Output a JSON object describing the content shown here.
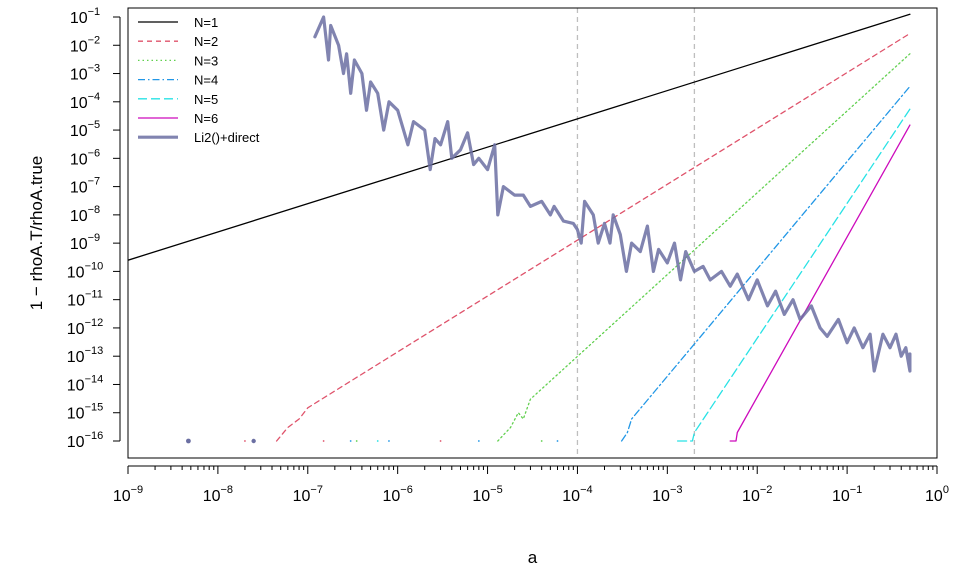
{
  "chart_data": {
    "type": "line",
    "xlabel": "a",
    "ylabel": "1 − rhoA.T/rhoA.true",
    "x_scale": "log",
    "y_scale": "log",
    "xlim": [
      1e-09,
      1
    ],
    "ylim": [
      1e-16,
      0.1
    ],
    "x_ticks": [
      {
        "base": "10",
        "exp": "−9",
        "value": 1e-09
      },
      {
        "base": "10",
        "exp": "−8",
        "value": 1e-08
      },
      {
        "base": "10",
        "exp": "−7",
        "value": 1e-07
      },
      {
        "base": "10",
        "exp": "−6",
        "value": 1e-06
      },
      {
        "base": "10",
        "exp": "−5",
        "value": 1e-05
      },
      {
        "base": "10",
        "exp": "−4",
        "value": 0.0001
      },
      {
        "base": "10",
        "exp": "−3",
        "value": 0.001
      },
      {
        "base": "10",
        "exp": "−2",
        "value": 0.01
      },
      {
        "base": "10",
        "exp": "−1",
        "value": 0.1
      },
      {
        "base": "10",
        "exp": "0",
        "value": 1
      }
    ],
    "y_ticks": [
      {
        "base": "10",
        "exp": "−16",
        "value": 1e-16
      },
      {
        "base": "10",
        "exp": "−15",
        "value": 1e-15
      },
      {
        "base": "10",
        "exp": "−14",
        "value": 1e-14
      },
      {
        "base": "10",
        "exp": "−13",
        "value": 1e-13
      },
      {
        "base": "10",
        "exp": "−12",
        "value": 1e-12
      },
      {
        "base": "10",
        "exp": "−11",
        "value": 1e-11
      },
      {
        "base": "10",
        "exp": "−10",
        "value": 1e-10
      },
      {
        "base": "10",
        "exp": "−9",
        "value": 1e-09
      },
      {
        "base": "10",
        "exp": "−8",
        "value": 1e-08
      },
      {
        "base": "10",
        "exp": "−7",
        "value": 1e-07
      },
      {
        "base": "10",
        "exp": "−6",
        "value": 1e-06
      },
      {
        "base": "10",
        "exp": "−5",
        "value": 1e-05
      },
      {
        "base": "10",
        "exp": "−4",
        "value": 0.0001
      },
      {
        "base": "10",
        "exp": "−3",
        "value": 0.001
      },
      {
        "base": "10",
        "exp": "−2",
        "value": 0.01
      },
      {
        "base": "10",
        "exp": "−1",
        "value": 0.1
      }
    ],
    "vlines": [
      {
        "x": 0.0001,
        "color": "#bebebe",
        "style": "dashed"
      },
      {
        "x": 0.002,
        "color": "#bebebe",
        "style": "dashed"
      }
    ],
    "legend_position": "top-left",
    "grid": false,
    "series": [
      {
        "name": "N=1",
        "color": "#000000",
        "dash": "",
        "width": 1.3,
        "opacity": 1,
        "points": [
          [
            1e-09,
            2.5e-10
          ],
          [
            0.5,
            0.125
          ]
        ]
      },
      {
        "name": "N=2",
        "color": "#DF536B",
        "dash": "5,4",
        "width": 1.3,
        "opacity": 1,
        "points": [
          [
            4.5e-08,
            1e-16
          ],
          [
            6e-08,
            3e-16
          ],
          [
            8e-08,
            6e-16
          ],
          [
            1e-07,
            1.5e-15
          ],
          [
            0.5,
            0.026
          ]
        ]
      },
      {
        "name": "N=3",
        "color": "#61D04F",
        "dash": "1.5,3",
        "width": 1.3,
        "opacity": 1,
        "points": [
          [
            1.3e-05,
            1e-16
          ],
          [
            1.8e-05,
            3e-16
          ],
          [
            2.2e-05,
            1e-15
          ],
          [
            2.5e-05,
            6e-16
          ],
          [
            3e-05,
            3e-15
          ],
          [
            0.5,
            0.005
          ]
        ]
      },
      {
        "name": "N=4",
        "color": "#2297E6",
        "dash": "7,3,1.5,3",
        "width": 1.3,
        "opacity": 1,
        "points": [
          [
            0.00031,
            1e-16
          ],
          [
            0.00036,
            2e-16
          ],
          [
            0.0004,
            6e-16
          ],
          [
            0.5,
            0.00035
          ]
        ]
      },
      {
        "name": "N=5",
        "color": "#28E2E5",
        "dash": "9,4",
        "width": 1.3,
        "opacity": 1,
        "points": [
          [
            0.0013,
            1e-16
          ],
          [
            0.0019,
            1e-16
          ],
          [
            0.002,
            2e-16
          ],
          [
            0.5,
            5.5e-05
          ]
        ]
      },
      {
        "name": "N=6",
        "color": "#CD0BBC",
        "dash": "",
        "width": 1.3,
        "opacity": 1,
        "points": [
          [
            0.005,
            1e-16
          ],
          [
            0.0058,
            1e-16
          ],
          [
            0.006,
            2e-16
          ],
          [
            0.5,
            1.5e-05
          ]
        ]
      },
      {
        "name": "Li2()+direct",
        "color": "#6B6FA2",
        "dash": "",
        "width": 3.2,
        "opacity": 0.85,
        "points": [
          [
            1.2e-07,
            0.02
          ],
          [
            1.5e-07,
            0.1
          ],
          [
            1.7e-07,
            0.003
          ],
          [
            1.8e-07,
            0.05
          ],
          [
            2.2e-07,
            0.01
          ],
          [
            2.5e-07,
            0.001
          ],
          [
            2.7e-07,
            0.005
          ],
          [
            3e-07,
            0.0002
          ],
          [
            3.3e-07,
            0.003
          ],
          [
            4e-07,
            0.001
          ],
          [
            4.5e-07,
            5e-05
          ],
          [
            5e-07,
            0.0005
          ],
          [
            6e-07,
            0.0002
          ],
          [
            7e-07,
            1e-05
          ],
          [
            8e-07,
            0.0001
          ],
          [
            1e-06,
            5e-05
          ],
          [
            1.3e-06,
            3e-06
          ],
          [
            1.5e-06,
            2e-05
          ],
          [
            2e-06,
            1e-05
          ],
          [
            2.3e-06,
            4e-07
          ],
          [
            2.6e-06,
            5e-06
          ],
          [
            3e-06,
            3e-06
          ],
          [
            3.6e-06,
            2e-05
          ],
          [
            4e-06,
            1e-06
          ],
          [
            5e-06,
            2e-06
          ],
          [
            6e-06,
            8e-06
          ],
          [
            7e-06,
            6e-07
          ],
          [
            8e-06,
            1e-06
          ],
          [
            1e-05,
            4e-07
          ],
          [
            1.2e-05,
            3e-06
          ],
          [
            1.3e-05,
            1e-08
          ],
          [
            1.5e-05,
            1e-07
          ],
          [
            2e-05,
            5e-08
          ],
          [
            2.5e-05,
            5e-08
          ],
          [
            3e-05,
            2e-08
          ],
          [
            4e-05,
            3e-08
          ],
          [
            5e-05,
            1e-08
          ],
          [
            5.5e-05,
            2e-08
          ],
          [
            7e-05,
            6e-09
          ],
          [
            9e-05,
            5e-09
          ],
          [
            0.0001,
            3e-09
          ],
          [
            0.00011,
            1e-09
          ],
          [
            0.00012,
            3e-08
          ],
          [
            0.00015,
            1e-08
          ],
          [
            0.00017,
            1e-09
          ],
          [
            0.0002,
            5e-09
          ],
          [
            0.00023,
            1e-09
          ],
          [
            0.00025,
            1e-08
          ],
          [
            0.0003,
            2e-09
          ],
          [
            0.00035,
            1e-10
          ],
          [
            0.0004,
            1e-09
          ],
          [
            0.0005,
            5e-10
          ],
          [
            0.0006,
            4e-09
          ],
          [
            0.0007,
            1e-10
          ],
          [
            0.0008,
            6e-10
          ],
          [
            0.001,
            2e-10
          ],
          [
            0.0012,
            1e-09
          ],
          [
            0.0014,
            5e-11
          ],
          [
            0.0016,
            5e-10
          ],
          [
            0.002,
            1e-10
          ],
          [
            0.0025,
            1.5e-10
          ],
          [
            0.003,
            5e-11
          ],
          [
            0.004,
            1e-10
          ],
          [
            0.005,
            3e-11
          ],
          [
            0.006,
            8e-11
          ],
          [
            0.008,
            1e-11
          ],
          [
            0.01,
            5e-11
          ],
          [
            0.013,
            6e-12
          ],
          [
            0.016,
            2e-11
          ],
          [
            0.02,
            3e-12
          ],
          [
            0.025,
            1e-11
          ],
          [
            0.03,
            2e-12
          ],
          [
            0.04,
            6e-12
          ],
          [
            0.05,
            1e-12
          ],
          [
            0.06,
            5e-13
          ],
          [
            0.08,
            2e-12
          ],
          [
            0.1,
            3e-13
          ],
          [
            0.12,
            1e-12
          ],
          [
            0.15,
            2e-13
          ],
          [
            0.18,
            6e-13
          ],
          [
            0.2,
            3e-14
          ],
          [
            0.25,
            6e-13
          ],
          [
            0.3,
            2e-13
          ],
          [
            0.35,
            6e-13
          ],
          [
            0.4,
            1e-13
          ],
          [
            0.45,
            2e-13
          ],
          [
            0.5,
            3e-14
          ],
          [
            0.5,
            1.2e-13
          ]
        ]
      }
    ],
    "scatter_points": [
      {
        "x": 4.7e-09,
        "y": 1e-16,
        "color": "#6B6FA2",
        "r": 2.4
      },
      {
        "x": 2.5e-08,
        "y": 1e-16,
        "color": "#6B6FA2",
        "r": 2.2
      },
      {
        "x": 2e-08,
        "y": 1e-16,
        "color": "#DF536B",
        "r": 0.9
      },
      {
        "x": 1.5e-07,
        "y": 1e-16,
        "color": "#DF536B",
        "r": 0.9
      },
      {
        "x": 3e-07,
        "y": 1e-16,
        "color": "#2297E6",
        "r": 0.9
      },
      {
        "x": 3.5e-07,
        "y": 1e-16,
        "color": "#61D04F",
        "r": 0.9
      },
      {
        "x": 6e-07,
        "y": 1e-16,
        "color": "#28E2E5",
        "r": 0.9
      },
      {
        "x": 8e-07,
        "y": 1e-16,
        "color": "#2297E6",
        "r": 0.9
      },
      {
        "x": 3e-06,
        "y": 1e-16,
        "color": "#DF536B",
        "r": 0.9
      },
      {
        "x": 8e-06,
        "y": 1e-16,
        "color": "#2297E6",
        "r": 0.9
      },
      {
        "x": 4e-05,
        "y": 1e-16,
        "color": "#61D04F",
        "r": 0.9
      },
      {
        "x": 6e-05,
        "y": 1e-16,
        "color": "#2297E6",
        "r": 0.9
      }
    ]
  }
}
